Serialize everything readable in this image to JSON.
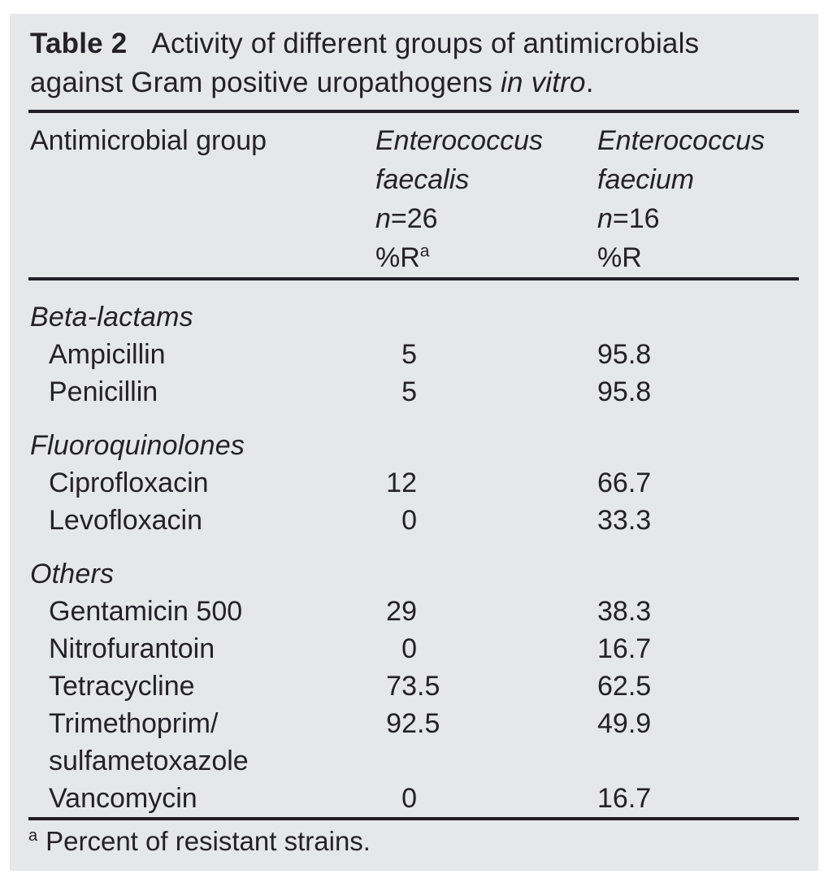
{
  "colors": {
    "panel_bg": "#e6e7e9",
    "text": "#242127",
    "rule": "#211f24"
  },
  "table": {
    "caption": {
      "label": "Table 2",
      "line1": "Activity of different groups of antimicrobials",
      "line2": "against Gram positive uropathogens",
      "line2_italic": "in vitro",
      "line2_suffix": "."
    },
    "header": {
      "col1": "Antimicrobial group",
      "col2": {
        "genus": "Enterococcus",
        "species": "faecalis",
        "n_italic": "n",
        "n_rest": "=26",
        "r_label": "%R",
        "r_sup": "a"
      },
      "col3": {
        "genus": "Enterococcus",
        "species": "faecium",
        "n_italic": "n",
        "n_rest": "=16",
        "r_label": "%R"
      }
    },
    "sections": [
      {
        "label": "Beta-lactams",
        "rows": [
          {
            "name": "Ampicillin",
            "faecalis": "5",
            "faecium": "95.8"
          },
          {
            "name": "Penicillin",
            "faecalis": "5",
            "faecium": "95.8"
          }
        ]
      },
      {
        "label": "Fluoroquinolones",
        "rows": [
          {
            "name": "Ciprofloxacin",
            "faecalis": "12",
            "faecium": "66.7"
          },
          {
            "name": "Levofloxacin",
            "faecalis": "0",
            "faecium": "33.3"
          }
        ]
      },
      {
        "label": "Others",
        "rows": [
          {
            "name": "Gentamicin 500",
            "faecalis": "29",
            "faecium": "38.3"
          },
          {
            "name": "Nitrofurantoin",
            "faecalis": "0",
            "faecium": "16.7"
          },
          {
            "name": "Tetracycline",
            "faecalis": "73.5",
            "faecium": "62.5"
          },
          {
            "name": "Trimethoprim/",
            "name_cont": "sulfametoxazole",
            "faecalis": "92.5",
            "faecium": "49.9"
          },
          {
            "name": "Vancomycin",
            "faecalis": "0",
            "faecium": "16.7"
          }
        ]
      }
    ],
    "footnote": {
      "marker": "a",
      "text": "Percent of resistant strains."
    }
  }
}
